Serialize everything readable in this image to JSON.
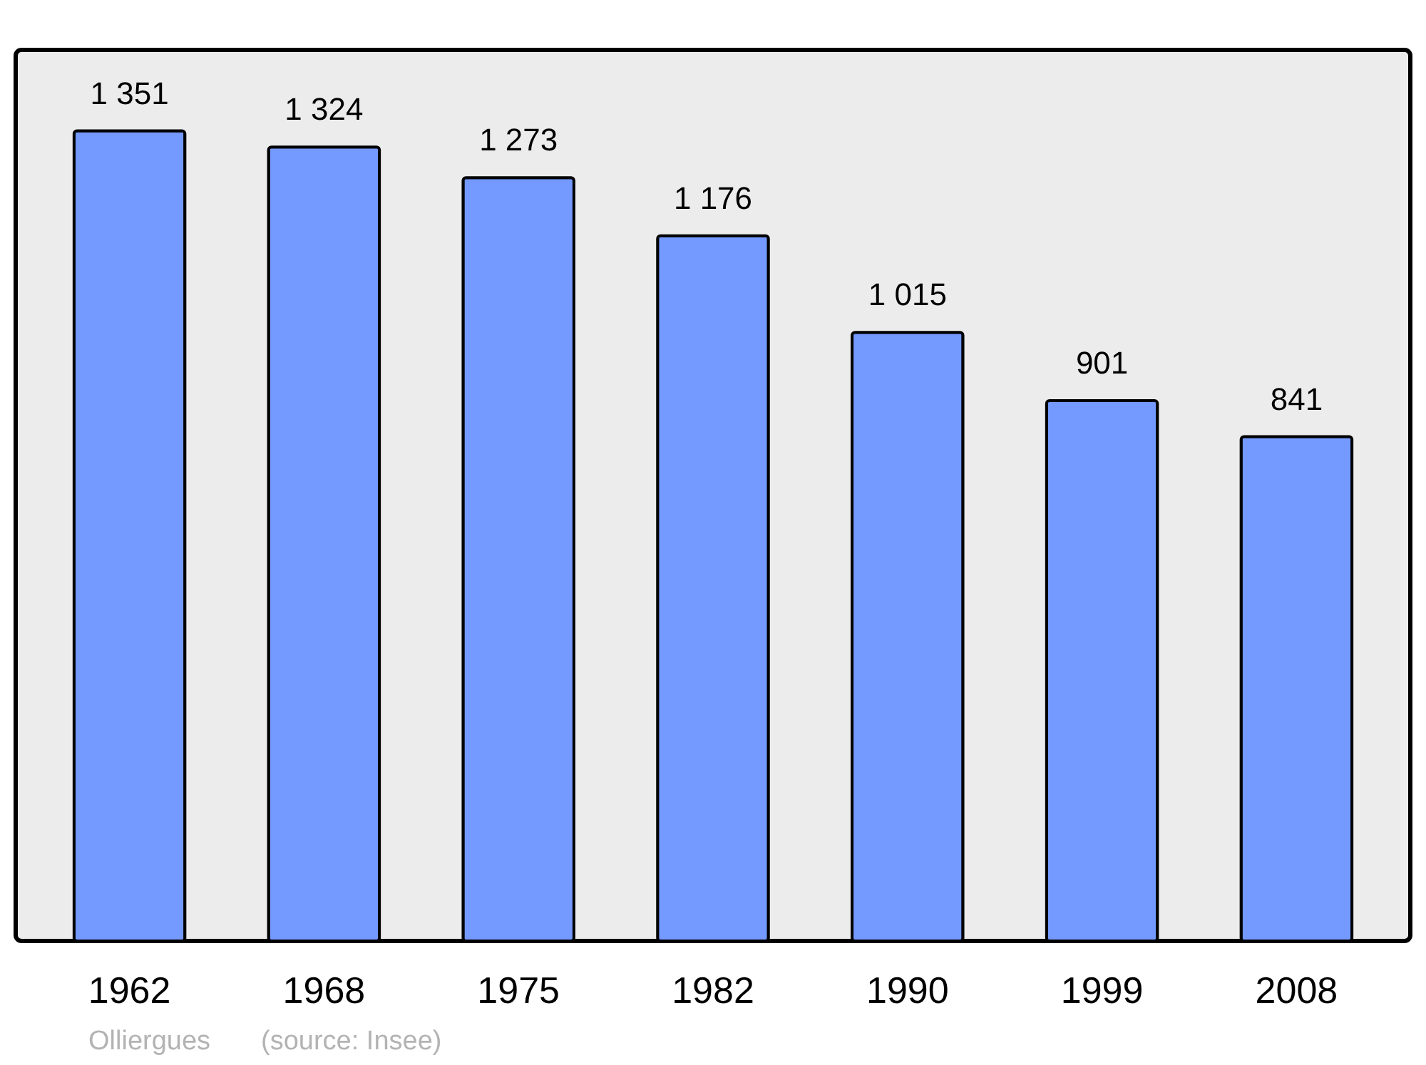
{
  "chart_data": {
    "type": "bar",
    "categories": [
      "1962",
      "1968",
      "1975",
      "1982",
      "1990",
      "1999",
      "2008"
    ],
    "values": [
      1351,
      1324,
      1273,
      1176,
      1015,
      901,
      841
    ],
    "value_labels": [
      "1 351",
      "1 324",
      "1 273",
      "1 176",
      "1 015",
      "901",
      "841"
    ],
    "color": "#7499ff",
    "ylim": [
      0,
      1486
    ],
    "tick_labels": "x",
    "grid": false,
    "annotations": [
      "Olliergues",
      "(source: Insee)"
    ]
  }
}
